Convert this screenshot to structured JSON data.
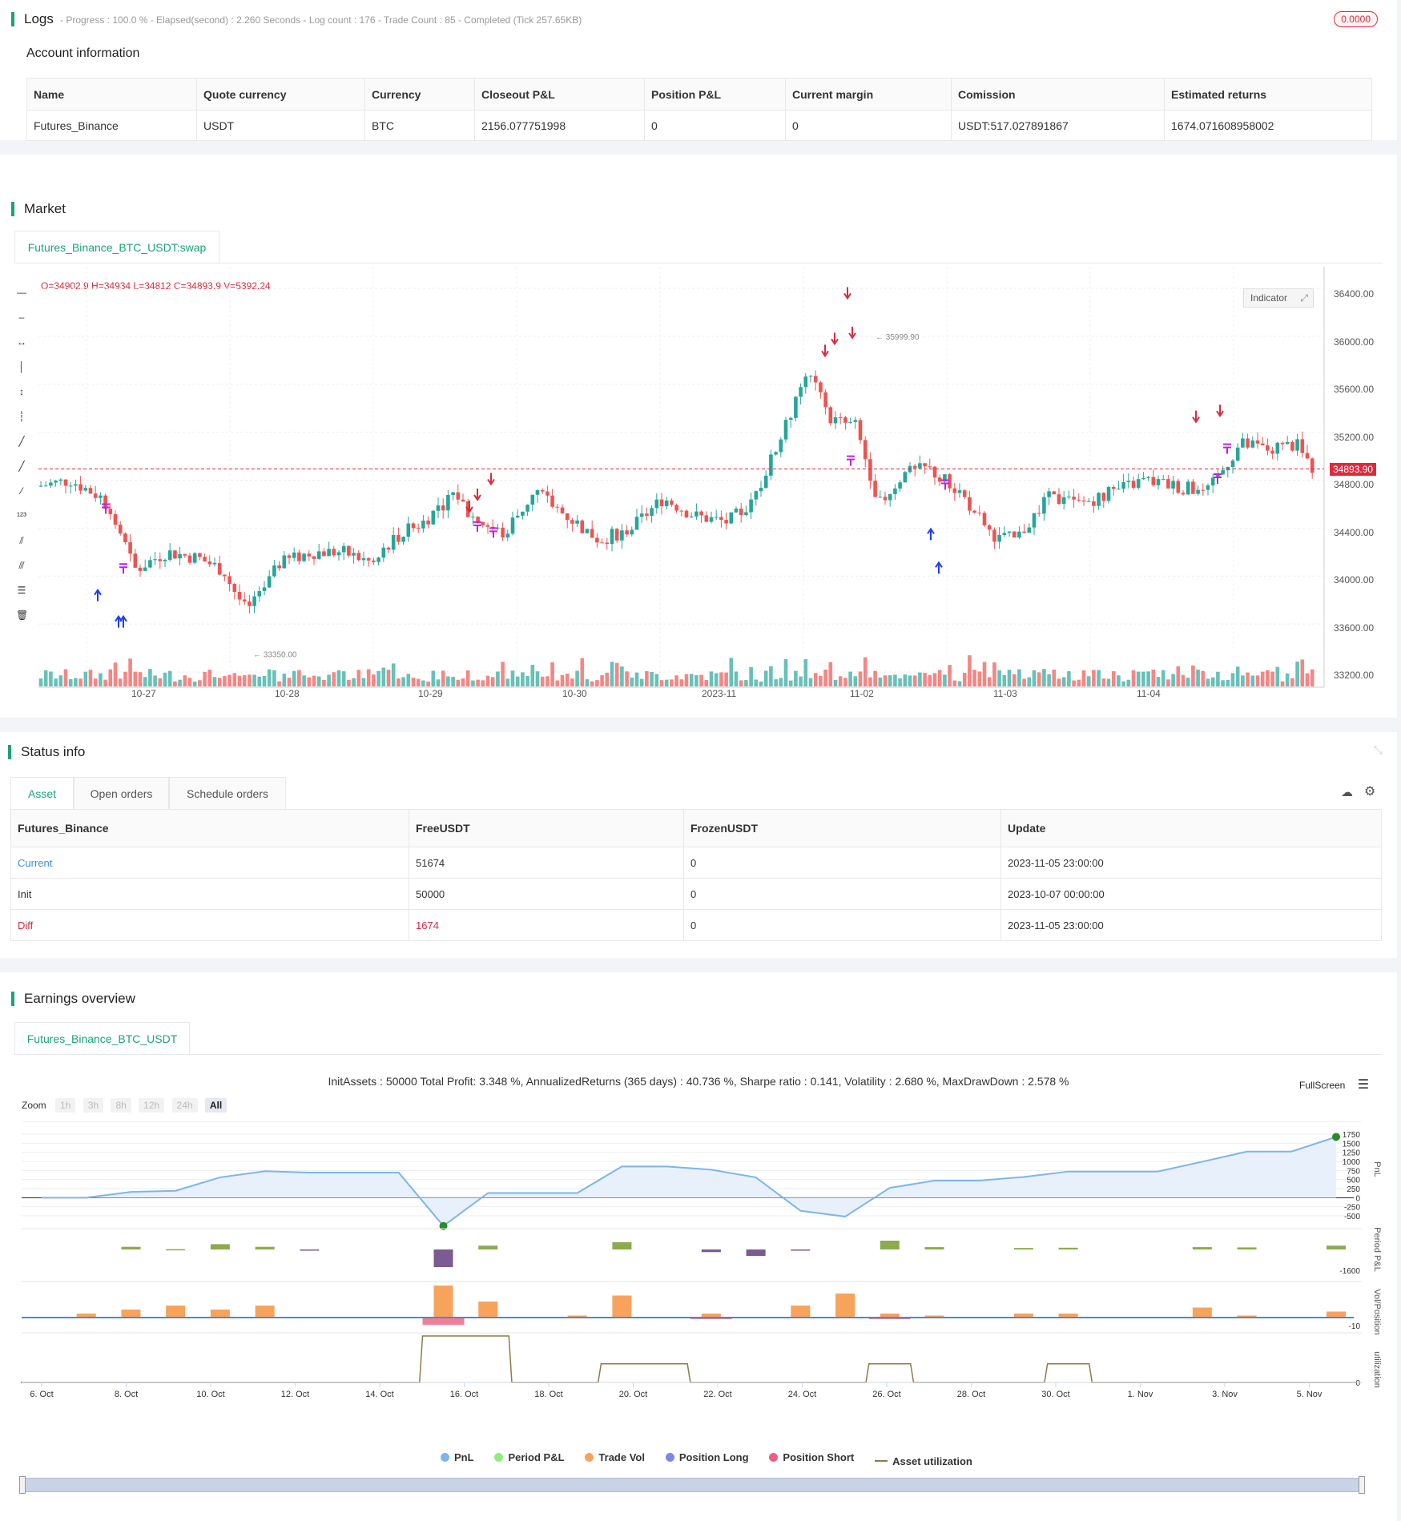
{
  "logs": {
    "title": "Logs",
    "meta": "- Progress : 100.0 % - Elapsed(second) : 2.260  Seconds - Log count : 176 - Trade Count : 85 - Completed (Tick 257.65KB)",
    "badge": "0.0000",
    "account_title": "Account information",
    "columns": [
      "Name",
      "Quote currency",
      "Currency",
      "Closeout P&L",
      "Position P&L",
      "Current margin",
      "Comission",
      "Estimated returns"
    ],
    "row": [
      "Futures_Binance",
      "USDT",
      "BTC",
      "2156.077751998",
      "0",
      "0",
      "USDT:517.027891867",
      "1674.071608958002"
    ]
  },
  "market": {
    "title": "Market",
    "tab": "Futures_Binance_BTC_USDT:swap",
    "ohlc": "O=34902.9 H=34934 L=34812 C=34893.9 V=5392.24",
    "indicator_btn": "Indicator",
    "last_price": "34893.90",
    "high_label": "35999.90",
    "low_label": "33350.00",
    "price_ticks": [
      "36400.00",
      "36000.00",
      "35600.00",
      "35200.00",
      "34800.00",
      "34400.00",
      "34000.00",
      "33600.00",
      "33200.00"
    ],
    "time_ticks": [
      "10-27",
      "10-28",
      "10-29",
      "10-30",
      "2023-11",
      "11-02",
      "11-03",
      "11-04"
    ],
    "colors": {
      "up": "#26a69a",
      "down": "#ef5350",
      "signal_long": "#1f3cf0",
      "signal_short": "#e0293c",
      "signal_close": "#c020e0"
    }
  },
  "status": {
    "title": "Status info",
    "tabs": [
      "Asset",
      "Open orders",
      "Schedule orders"
    ],
    "columns": [
      "Futures_Binance",
      "FreeUSDT",
      "FrozenUSDT",
      "Update"
    ],
    "rows": [
      [
        "Current",
        "51674",
        "0",
        "2023-11-05 23:00:00"
      ],
      [
        "Init",
        "50000",
        "0",
        "2023-10-07 00:00:00"
      ],
      [
        "Diff",
        "1674",
        "0",
        "2023-11-05 23:00:00"
      ]
    ]
  },
  "earnings": {
    "title": "Earnings overview",
    "tab": "Futures_Binance_BTC_USDT",
    "summary": "InitAssets : 50000 Total Profit: 3.348 %, AnnualizedReturns (365 days) : 40.736 %, Sharpe ratio : 0.141, Volatility : 2.680 %, MaxDrawDown : 2.578 %",
    "fullscreen": "FullScreen",
    "zoom_label": "Zoom",
    "zoom_options": [
      "1h",
      "3h",
      "8h",
      "12h",
      "24h",
      "All"
    ],
    "pnl_ticks": [
      "1750",
      "1500",
      "1250",
      "1000",
      "750",
      "500",
      "250",
      "0",
      "-250",
      "-500"
    ],
    "axis_titles": [
      "PnL",
      "Period P&L",
      "Vol/Position",
      "utilization"
    ],
    "period_tick": "-1600",
    "vol_tick": "-10",
    "util_tick": "0",
    "date_ticks": [
      "6. Oct",
      "8. Oct",
      "10. Oct",
      "12. Oct",
      "14. Oct",
      "16. Oct",
      "18. Oct",
      "20. Oct",
      "22. Oct",
      "24. Oct",
      "26. Oct",
      "28. Oct",
      "30. Oct",
      "1. Nov",
      "3. Nov",
      "5. Nov"
    ],
    "legend": [
      {
        "label": "PnL",
        "color": "#7cb5ec"
      },
      {
        "label": "Period P&L",
        "color": "#90ed7d"
      },
      {
        "label": "Trade Vol",
        "color": "#f7a35c"
      },
      {
        "label": "Position Long",
        "color": "#8085e9"
      },
      {
        "label": "Position Short",
        "color": "#f15c80"
      },
      {
        "label": "Asset utilization",
        "color": "#8d7b4a"
      }
    ]
  },
  "chart_data": {
    "type": "line",
    "title": "",
    "x": [
      "6. Oct",
      "8. Oct",
      "9. Oct",
      "10. Oct",
      "11. Oct",
      "12. Oct",
      "13. Oct",
      "15. Oct",
      "16. Oct",
      "17. Oct",
      "18. Oct",
      "19. Oct",
      "20. Oct",
      "21. Oct",
      "22. Oct",
      "23. Oct",
      "24. Oct",
      "25. Oct",
      "26. Oct",
      "27. Oct",
      "28. Oct",
      "29. Oct",
      "30. Oct",
      "31. Oct",
      "1. Nov",
      "2. Nov",
      "3. Nov",
      "4. Nov",
      "5. Nov",
      "6. Nov"
    ],
    "series": [
      {
        "name": "PnL",
        "values": [
          0,
          0,
          160,
          190,
          560,
          730,
          690,
          690,
          690,
          -780,
          130,
          130,
          130,
          860,
          860,
          770,
          560,
          -360,
          -520,
          270,
          470,
          470,
          570,
          720,
          720,
          720,
          990,
          1270,
          1270,
          1674
        ]
      }
    ],
    "ylim": [
      -500,
      1750
    ],
    "period_pnl": [
      0,
      0,
      90,
      10,
      180,
      90,
      -10,
      0,
      0,
      -600,
      130,
      0,
      0,
      250,
      0,
      -90,
      -220,
      -40,
      0,
      300,
      80,
      0,
      50,
      60,
      0,
      0,
      80,
      70,
      0,
      130
    ],
    "trade_vol": [
      0,
      2,
      4,
      6,
      4,
      6,
      0,
      0,
      0,
      16,
      8,
      0,
      1,
      11,
      0,
      2,
      0,
      6,
      12,
      2,
      1,
      0,
      2,
      2,
      0,
      0,
      5,
      1,
      0,
      3
    ],
    "utilization": [
      0,
      0,
      0,
      0,
      0,
      0,
      0,
      0,
      0,
      1,
      1,
      0,
      0,
      0.4,
      0.4,
      0,
      0,
      0,
      0,
      0.4,
      0,
      0,
      0,
      0.4,
      0,
      0,
      0,
      0,
      0,
      0
    ]
  }
}
